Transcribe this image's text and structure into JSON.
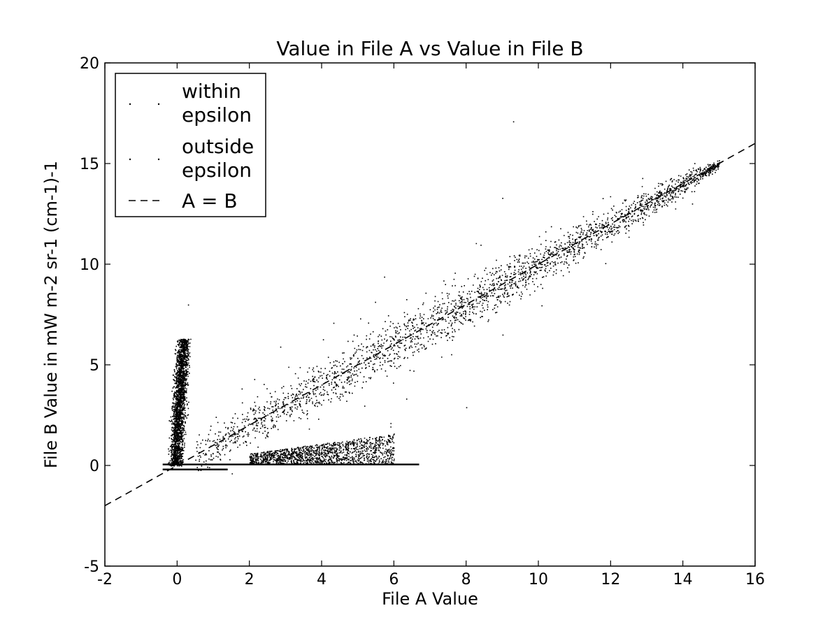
{
  "chart_data": {
    "type": "scatter",
    "title": "Value in File A vs Value in File B",
    "xlabel": "File A Value",
    "ylabel": "File B Value in mW m-2 sr-1 (cm-1)-1",
    "xlim": [
      -2,
      16
    ],
    "ylim": [
      -5,
      20
    ],
    "xticks": [
      "-2",
      "0",
      "2",
      "4",
      "6",
      "8",
      "10",
      "12",
      "14",
      "16"
    ],
    "yticks": [
      "-5",
      "0",
      "5",
      "10",
      "15",
      "20"
    ],
    "grid": false,
    "legend_placement": "top-left",
    "legend": [
      {
        "label_lines": [
          "within",
          "epsilon"
        ],
        "marker": "point"
      },
      {
        "label_lines": [
          "outside",
          "epsilon"
        ],
        "marker": "point"
      },
      {
        "label_lines": [
          "A = B"
        ],
        "marker": "dashed-line"
      }
    ],
    "series": [
      {
        "name": "within epsilon",
        "style": "points",
        "color": "#000000",
        "clusters": [
          {
            "x_range": [
              0.5,
              15.0
            ],
            "relation": "y ≈ x",
            "spread_y": 1.2,
            "density": "very dense"
          },
          {
            "x_range": [
              -0.3,
              0.6
            ],
            "y_range": [
              0.0,
              6.3
            ],
            "relation": "near-vertical band",
            "density": "dense"
          },
          {
            "x_range": [
              2.0,
              6.0
            ],
            "y_range": [
              0.1,
              2.0
            ],
            "relation": "low band below diagonal",
            "density": "sparse"
          }
        ],
        "outliers": [
          {
            "x": 0.3,
            "y": 8.0
          },
          {
            "x": 9.3,
            "y": 17.1
          },
          {
            "x": 9.0,
            "y": 13.3
          },
          {
            "x": 8.0,
            "y": 2.9
          }
        ]
      },
      {
        "name": "outside epsilon",
        "style": "points",
        "color": "#000000",
        "segments": [
          {
            "x": [
              -0.4,
              6.7
            ],
            "y": [
              0.05,
              0.05
            ]
          },
          {
            "x": [
              -0.4,
              1.4
            ],
            "y": [
              -0.2,
              -0.2
            ]
          }
        ]
      },
      {
        "name": "A = B",
        "style": "dashed-line",
        "color": "#000000",
        "x": [
          -2,
          16
        ],
        "y": [
          -2,
          16
        ]
      }
    ]
  }
}
